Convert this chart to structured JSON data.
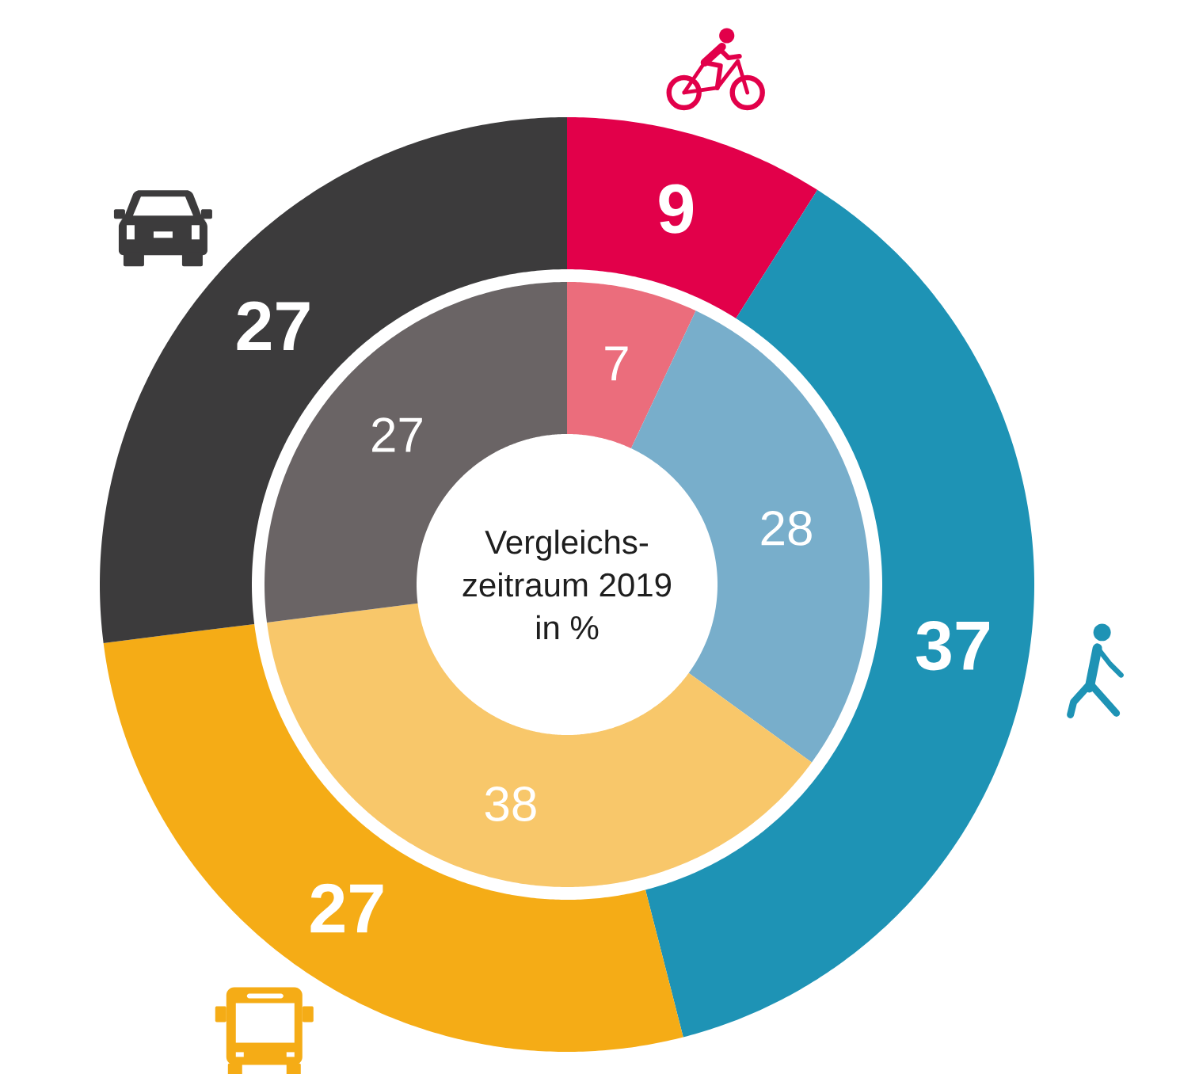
{
  "chart_data": {
    "type": "donut",
    "categories": [
      null,
      null,
      null,
      null
    ],
    "series": [
      {
        "values": [
          9,
          37,
          27,
          27
        ],
        "colors": [
          "#e2004a",
          "#1e93b5",
          "#f5ac16",
          "#3c3b3c"
        ]
      },
      {
        "name": "Vergleichs- zeitraum 2019 in %",
        "values": [
          7,
          28,
          38,
          27
        ],
        "colors": [
          "#eb6d7c",
          "#78aecb",
          "#f8c76a",
          "#6a6465"
        ]
      }
    ],
    "data_labels": true
  }
}
